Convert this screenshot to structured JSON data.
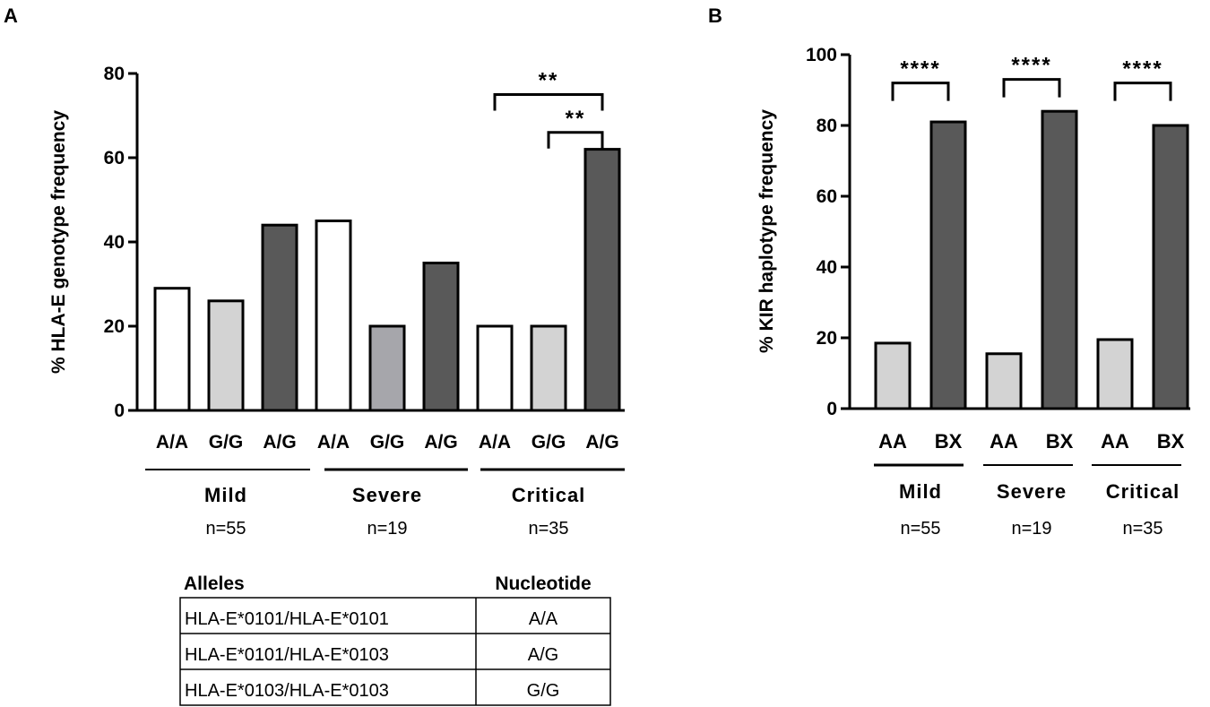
{
  "panel_a_letter": "A",
  "panel_b_letter": "B",
  "chart_data": [
    {
      "type": "bar",
      "panel": "A",
      "ylabel": "% HLA-E genotype frequency",
      "ylim": [
        0,
        80
      ],
      "yticks": [
        0,
        20,
        40,
        60,
        80
      ],
      "categories": [
        "A/A",
        "G/G",
        "A/G",
        "A/A",
        "G/G",
        "A/G",
        "A/A",
        "G/G",
        "A/G"
      ],
      "values": [
        29,
        26,
        44,
        45,
        20,
        35,
        20,
        20,
        62
      ],
      "bar_colors": [
        "#ffffff",
        "#d3d3d3",
        "#595959",
        "#ffffff",
        "#a6a6ab",
        "#595959",
        "#ffffff",
        "#d3d3d3",
        "#595959"
      ],
      "groups": [
        {
          "label": "Mild",
          "n": "n=55"
        },
        {
          "label": "Severe",
          "n": "n=19"
        },
        {
          "label": "Critical",
          "n": "n=35"
        }
      ],
      "annotations": [
        {
          "text": "**",
          "from_bar": 6,
          "to_bar": 8,
          "y": 75
        },
        {
          "text": "**",
          "from_bar": 7,
          "to_bar": 8,
          "y": 66
        }
      ]
    },
    {
      "type": "bar",
      "panel": "B",
      "ylabel": "% KIR haplotype frequency",
      "ylim": [
        0,
        100
      ],
      "yticks": [
        0,
        20,
        40,
        60,
        80,
        100
      ],
      "categories": [
        "AA",
        "BX",
        "AA",
        "BX",
        "AA",
        "BX"
      ],
      "values": [
        18.5,
        81,
        15.5,
        84,
        19.5,
        80
      ],
      "bar_colors": [
        "#d3d3d3",
        "#595959",
        "#d3d3d3",
        "#595959",
        "#d3d3d3",
        "#595959"
      ],
      "groups": [
        {
          "label": "Mild",
          "n": "n=55"
        },
        {
          "label": "Severe",
          "n": "n=19"
        },
        {
          "label": "Critical",
          "n": "n=35"
        }
      ],
      "annotations": [
        {
          "text": "****",
          "from_bar": 0,
          "to_bar": 1,
          "y": 92
        },
        {
          "text": "****",
          "from_bar": 2,
          "to_bar": 3,
          "y": 93
        },
        {
          "text": "****",
          "from_bar": 4,
          "to_bar": 5,
          "y": 92
        }
      ]
    }
  ],
  "allele_table": {
    "headers": [
      "Alleles",
      "Nucleotide"
    ],
    "rows": [
      [
        "HLA-E*0101/HLA-E*0101",
        "A/A"
      ],
      [
        "HLA-E*0101/HLA-E*0103",
        "A/G"
      ],
      [
        "HLA-E*0103/HLA-E*0103",
        "G/G"
      ]
    ]
  }
}
